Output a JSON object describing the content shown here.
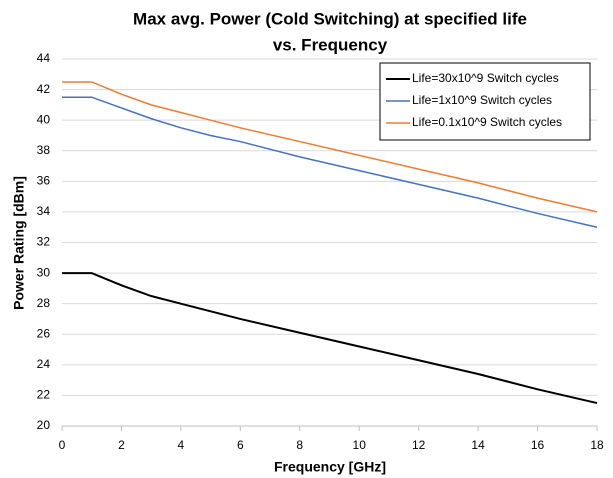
{
  "chart_data": {
    "type": "line",
    "title": [
      "Max avg. Power (Cold Switching) at specified life",
      "vs. Frequency"
    ],
    "x_label": "Frequency [GHz]",
    "y_label": "Power Rating [dBm]",
    "x": [
      0,
      1,
      2,
      3,
      4,
      5,
      6,
      8,
      10,
      12,
      14,
      16,
      18
    ],
    "series": [
      {
        "name": "Life=30x10^9 Switch cycles",
        "color": "#000000",
        "values": [
          30,
          30,
          29.2,
          28.5,
          28.0,
          27.5,
          27.0,
          26.1,
          25.2,
          24.3,
          23.4,
          22.4,
          21.5
        ]
      },
      {
        "name": "Life=1x10^9 Switch cycles",
        "color": "#4472c4",
        "values": [
          41.5,
          41.5,
          40.8,
          40.1,
          39.5,
          39.0,
          38.6,
          37.6,
          36.7,
          35.8,
          34.9,
          33.9,
          33.0
        ]
      },
      {
        "name": "Life=0.1x10^9 Switch cycles",
        "color": "#ed7d31",
        "values": [
          42.5,
          42.5,
          41.7,
          41.0,
          40.5,
          40.0,
          39.5,
          38.6,
          37.7,
          36.8,
          35.9,
          34.9,
          34.0
        ]
      }
    ],
    "xlim": [
      0,
      18
    ],
    "xticks": [
      0,
      2,
      4,
      6,
      8,
      10,
      12,
      14,
      16,
      18
    ],
    "ylim": [
      20,
      44
    ],
    "yticks": [
      20,
      22,
      24,
      26,
      28,
      30,
      32,
      34,
      36,
      38,
      40,
      42,
      44
    ],
    "grid": true,
    "legend": "upper right"
  }
}
